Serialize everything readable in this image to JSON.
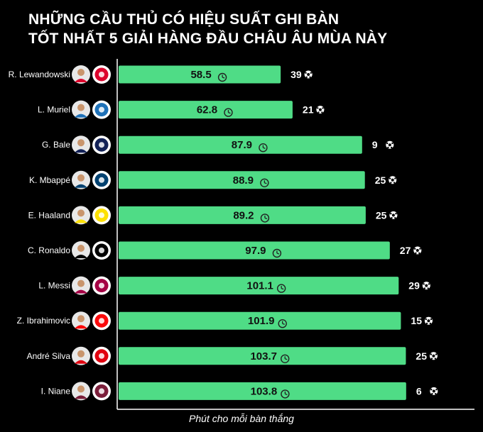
{
  "title": {
    "line1": "NHỮNG CẦU THỦ CÓ HIỆU SUẤT GHI BÀN",
    "line2": "TỐT NHẤT 5 GIẢI HÀNG ĐẦU CHÂU ÂU MÙA NÀY"
  },
  "chart_data": {
    "type": "bar",
    "orientation": "horizontal",
    "xlabel": "Phút cho mỗi bàn thắng",
    "categories": [
      "R. Lewandowski",
      "L. Muriel",
      "G. Bale",
      "K. Mbappé",
      "E. Haaland",
      "C. Ronaldo",
      "L. Messi",
      "Z. Ibrahimovic",
      "André Silva",
      "I. Niane"
    ],
    "values": [
      58.5,
      62.8,
      87.9,
      88.9,
      89.2,
      97.9,
      101.1,
      101.9,
      103.7,
      103.8
    ],
    "goals": [
      39,
      21,
      9,
      25,
      25,
      27,
      29,
      15,
      25,
      6
    ],
    "bar_color": "#4fdc86",
    "club_colors": [
      "#dc052d",
      "#1e71b8",
      "#132257",
      "#004170",
      "#fde100",
      "#000000",
      "#a50044",
      "#fb090b",
      "#e1000f",
      "#7b1e3a"
    ],
    "icons": [
      "clock-icon",
      "football-icon",
      "player-avatar",
      "club-crest"
    ]
  }
}
